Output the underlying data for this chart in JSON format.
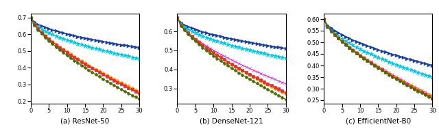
{
  "x_max": 30,
  "xticks": [
    0,
    5,
    10,
    15,
    20,
    25,
    30
  ],
  "subplots": [
    {
      "title": "(a) ResNet-50",
      "ylim": [
        0.185,
        0.725
      ],
      "yticks": [
        0.2,
        0.3,
        0.4,
        0.5,
        0.6,
        0.7
      ],
      "lines": [
        {
          "start": 0.7,
          "end": 0.52,
          "concave": 0.55,
          "color": "#1a3f99",
          "marker": ">",
          "ms": 3.5,
          "lw": 1.0
        },
        {
          "start": 0.7,
          "end": 0.455,
          "concave": 0.55,
          "color": "#00c8e0",
          "marker": "*",
          "ms": 4.5,
          "lw": 1.0
        },
        {
          "start": 0.7,
          "end": 0.245,
          "concave": 0.72,
          "color": "#cc44cc",
          "marker": "x",
          "ms": 3.5,
          "lw": 0.9
        },
        {
          "start": 0.7,
          "end": 0.258,
          "concave": 0.7,
          "color": "#ff9900",
          "marker": "D",
          "ms": 2.5,
          "lw": 0.9
        },
        {
          "start": 0.7,
          "end": 0.248,
          "concave": 0.7,
          "color": "#e03030",
          "marker": "s",
          "ms": 2.5,
          "lw": 0.9
        },
        {
          "start": 0.7,
          "end": 0.213,
          "concave": 0.7,
          "color": "#4a6b00",
          "marker": "P",
          "ms": 3.0,
          "lw": 0.9
        }
      ]
    },
    {
      "title": "(b) DenseNet-121",
      "ylim": [
        0.22,
        0.695
      ],
      "yticks": [
        0.3,
        0.4,
        0.5,
        0.6
      ],
      "lines": [
        {
          "start": 0.67,
          "end": 0.51,
          "concave": 0.55,
          "color": "#1a3f99",
          "marker": ">",
          "ms": 3.5,
          "lw": 1.0
        },
        {
          "start": 0.67,
          "end": 0.46,
          "concave": 0.55,
          "color": "#00c8e0",
          "marker": "*",
          "ms": 4.5,
          "lw": 1.0
        },
        {
          "start": 0.67,
          "end": 0.325,
          "concave": 0.65,
          "color": "#cc44cc",
          "marker": "x",
          "ms": 3.5,
          "lw": 0.9
        },
        {
          "start": 0.67,
          "end": 0.272,
          "concave": 0.7,
          "color": "#ff9900",
          "marker": "D",
          "ms": 2.5,
          "lw": 0.9
        },
        {
          "start": 0.67,
          "end": 0.279,
          "concave": 0.7,
          "color": "#e03030",
          "marker": "s",
          "ms": 2.5,
          "lw": 0.9
        },
        {
          "start": 0.67,
          "end": 0.243,
          "concave": 0.7,
          "color": "#4a6b00",
          "marker": "P",
          "ms": 3.0,
          "lw": 0.9
        }
      ]
    },
    {
      "title": "(c) EfficientNet-B0",
      "ylim": [
        0.235,
        0.625
      ],
      "yticks": [
        0.25,
        0.3,
        0.35,
        0.4,
        0.45,
        0.5,
        0.55,
        0.6
      ],
      "lines": [
        {
          "start": 0.6,
          "end": 0.4,
          "concave": 0.6,
          "color": "#1a3f99",
          "marker": ">",
          "ms": 3.5,
          "lw": 1.0
        },
        {
          "start": 0.6,
          "end": 0.35,
          "concave": 0.6,
          "color": "#00c8e0",
          "marker": "*",
          "ms": 4.5,
          "lw": 1.0
        },
        {
          "start": 0.6,
          "end": 0.27,
          "concave": 0.7,
          "color": "#cc44cc",
          "marker": "x",
          "ms": 3.5,
          "lw": 0.9
        },
        {
          "start": 0.6,
          "end": 0.265,
          "concave": 0.7,
          "color": "#ff9900",
          "marker": "D",
          "ms": 2.5,
          "lw": 0.9
        },
        {
          "start": 0.6,
          "end": 0.26,
          "concave": 0.7,
          "color": "#e03030",
          "marker": "s",
          "ms": 2.5,
          "lw": 0.9
        },
        {
          "start": 0.6,
          "end": 0.257,
          "concave": 0.7,
          "color": "#4a6b00",
          "marker": "P",
          "ms": 3.0,
          "lw": 0.9
        }
      ]
    }
  ]
}
